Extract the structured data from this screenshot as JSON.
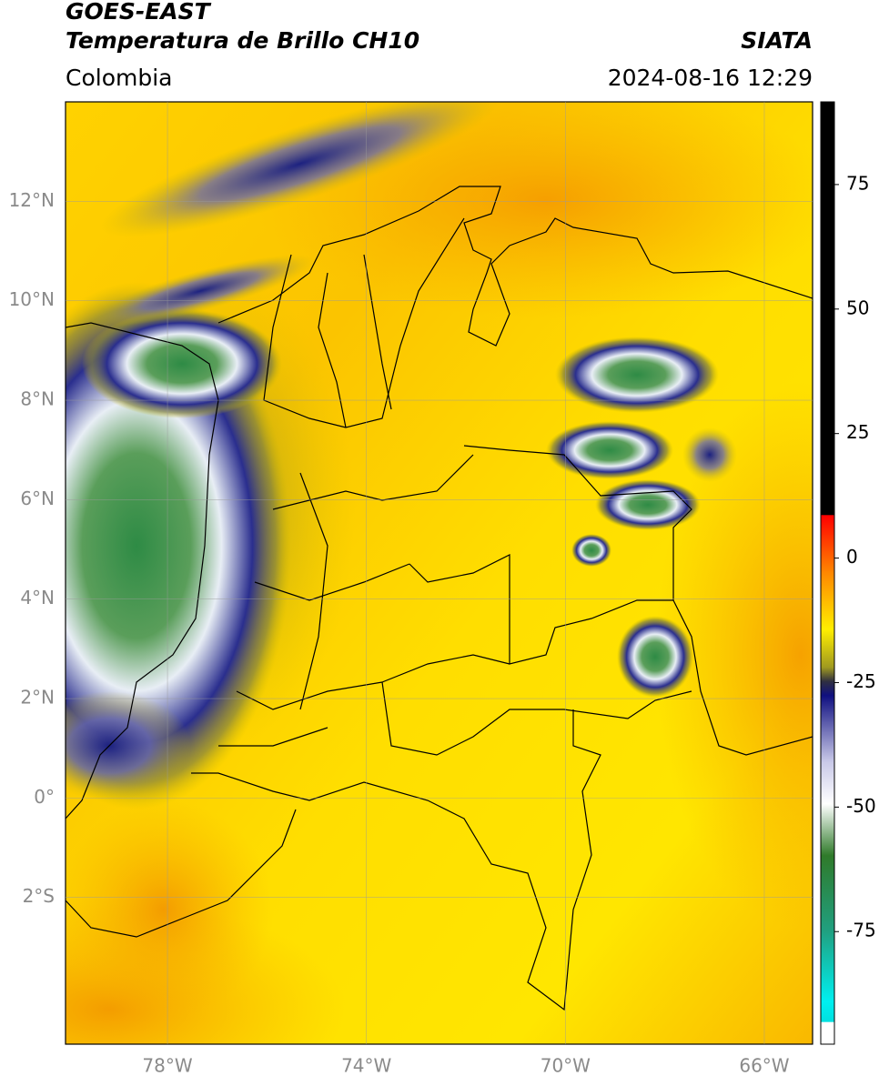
{
  "header": {
    "satellite": "GOES-EAST",
    "product": "Temperatura de Brillo CH10",
    "source": "SIATA",
    "region": "Colombia",
    "timestamp": "2024-08-16 12:29"
  },
  "chart_data": {
    "type": "map",
    "xlim": [
      -80.05,
      -65.03
    ],
    "ylim": [
      -4.95,
      14.0
    ],
    "xticks": [
      {
        "value": -78,
        "label": "78°W"
      },
      {
        "value": -74,
        "label": "74°W"
      },
      {
        "value": -70,
        "label": "70°W"
      },
      {
        "value": -66,
        "label": "66°W"
      }
    ],
    "yticks": [
      {
        "value": -2,
        "label": "2°S"
      },
      {
        "value": 0,
        "label": "0°"
      },
      {
        "value": 2,
        "label": "2°N"
      },
      {
        "value": 4,
        "label": "4°N"
      },
      {
        "value": 6,
        "label": "6°N"
      },
      {
        "value": 8,
        "label": "8°N"
      },
      {
        "value": 10,
        "label": "10°N"
      },
      {
        "value": 12,
        "label": "12°N"
      }
    ],
    "grid": true,
    "colorbar": {
      "lim": [
        -97.6,
        91.6
      ],
      "ticks": [
        -75,
        -50,
        -25,
        0,
        25,
        50,
        75
      ]
    }
  }
}
